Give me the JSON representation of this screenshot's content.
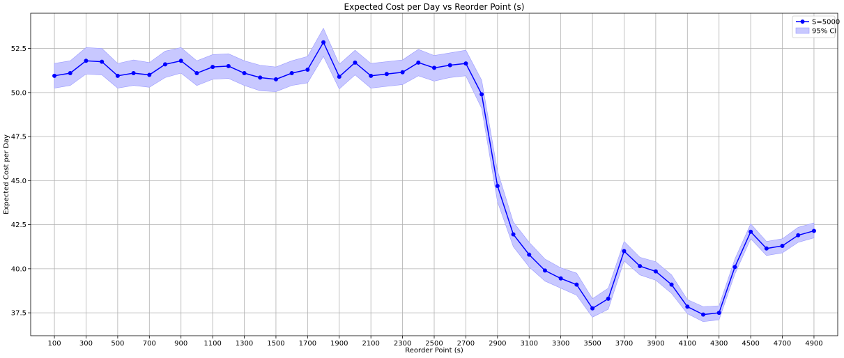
{
  "chart_data": {
    "type": "line",
    "title": "Expected Cost per Day vs Reorder Point (s)",
    "xlabel": "Reorder Point (s)",
    "ylabel": "Expected Cost per Day",
    "xlim": [
      -50,
      5050
    ],
    "ylim": [
      36.2,
      54.5
    ],
    "grid": true,
    "legend_position": "top-right",
    "x_ticks": [
      100,
      300,
      500,
      700,
      900,
      1100,
      1300,
      1500,
      1700,
      1900,
      2100,
      2300,
      2500,
      2700,
      2900,
      3100,
      3300,
      3500,
      3700,
      3900,
      4100,
      4300,
      4500,
      4700,
      4900
    ],
    "y_ticks": [
      37.5,
      40.0,
      42.5,
      45.0,
      47.5,
      50.0,
      52.5
    ],
    "y_tick_labels": [
      "37.5",
      "40.0",
      "42.5",
      "45.0",
      "47.5",
      "50.0",
      "52.5"
    ],
    "x": [
      100,
      200,
      300,
      400,
      500,
      600,
      700,
      800,
      900,
      1000,
      1100,
      1200,
      1300,
      1400,
      1500,
      1600,
      1700,
      1800,
      1900,
      2000,
      2100,
      2200,
      2300,
      2400,
      2500,
      2600,
      2700,
      2800,
      2900,
      3000,
      3100,
      3200,
      3300,
      3400,
      3500,
      3600,
      3700,
      3800,
      3900,
      4000,
      4100,
      4200,
      4300,
      4400,
      4500,
      4600,
      4700,
      4800,
      4900
    ],
    "series": [
      {
        "name": "S=5000",
        "color": "#0000ff",
        "values": [
          50.95,
          51.1,
          51.8,
          51.75,
          50.95,
          51.1,
          51.0,
          51.6,
          51.8,
          51.1,
          51.45,
          51.5,
          51.1,
          50.85,
          50.75,
          51.1,
          51.3,
          52.85,
          50.9,
          51.7,
          50.95,
          51.05,
          51.15,
          51.7,
          51.4,
          51.55,
          51.65,
          49.9,
          44.7,
          41.95,
          40.8,
          39.9,
          39.45,
          39.1,
          37.75,
          38.3,
          41.0,
          40.15,
          39.85,
          39.1,
          37.85,
          37.4,
          37.5,
          40.1,
          42.1,
          41.15,
          41.3,
          41.9,
          42.15
        ],
        "ci_lower": [
          50.25,
          50.4,
          51.05,
          51.0,
          50.25,
          50.4,
          50.3,
          50.85,
          51.1,
          50.4,
          50.75,
          50.8,
          50.4,
          50.1,
          50.05,
          50.4,
          50.55,
          52.05,
          50.2,
          51.0,
          50.25,
          50.35,
          50.45,
          50.95,
          50.65,
          50.85,
          50.95,
          49.1,
          43.8,
          41.25,
          40.1,
          39.3,
          38.9,
          38.5,
          37.25,
          37.7,
          40.45,
          39.65,
          39.35,
          38.6,
          37.45,
          37.0,
          37.1,
          39.7,
          41.7,
          40.75,
          40.9,
          41.5,
          41.75
        ],
        "ci_upper": [
          51.65,
          51.8,
          52.55,
          52.5,
          51.65,
          51.85,
          51.7,
          52.35,
          52.55,
          51.8,
          52.15,
          52.2,
          51.8,
          51.55,
          51.45,
          51.8,
          52.05,
          53.65,
          51.6,
          52.4,
          51.65,
          51.75,
          51.85,
          52.45,
          52.1,
          52.25,
          52.4,
          50.7,
          45.55,
          42.65,
          41.5,
          40.55,
          40.05,
          39.75,
          38.3,
          38.9,
          41.55,
          40.65,
          40.4,
          39.65,
          38.25,
          37.85,
          37.9,
          40.55,
          42.55,
          41.55,
          41.7,
          42.35,
          42.6
        ]
      }
    ],
    "legend": {
      "line_label": "S=5000",
      "band_label": "95% CI",
      "band_color": "#c8c8ff",
      "band_edge_color": "#9a9aff"
    }
  }
}
